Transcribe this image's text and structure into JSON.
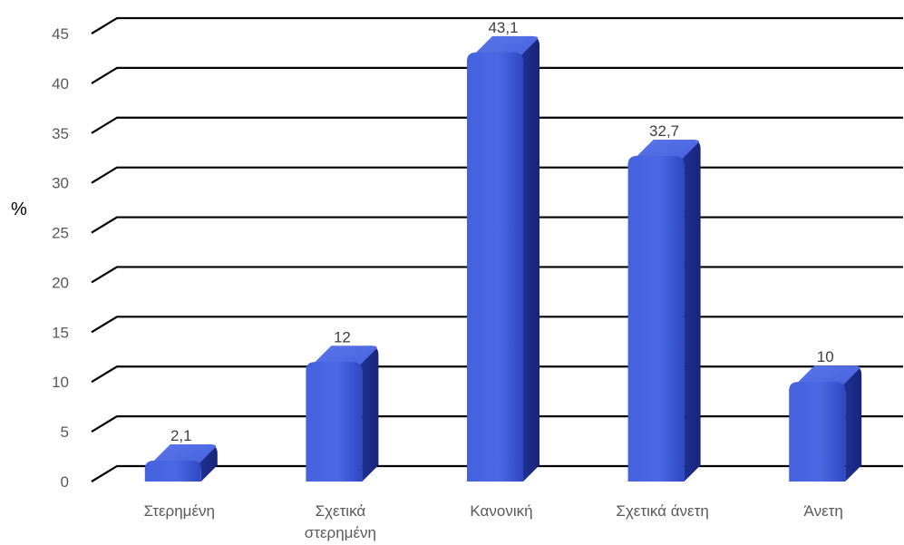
{
  "chart_data": {
    "type": "bar",
    "title": "",
    "xlabel": "",
    "ylabel": "%",
    "categories": [
      [
        "Στερημένη"
      ],
      [
        "Σχετικά",
        "στερημένη"
      ],
      [
        "Κανονική"
      ],
      [
        "Σχετικά άνετη"
      ],
      [
        "Άνετη"
      ]
    ],
    "values": [
      2.1,
      12,
      43.1,
      32.7,
      10
    ],
    "value_labels": [
      "2,1",
      "12",
      "43,1",
      "32,7",
      "10"
    ],
    "y_ticks": [
      "0",
      "5",
      "10",
      "15",
      "20",
      "25",
      "30",
      "35",
      "40",
      "45"
    ],
    "ylim": [
      0,
      45
    ],
    "grid": true,
    "legend": "none",
    "style": "3d-perspective-bars",
    "bar_color": "#3f5bd6",
    "bar_side_color": "#1f2f8f",
    "bar_top_color": "#5d78ea",
    "grid_color": "#000000"
  }
}
